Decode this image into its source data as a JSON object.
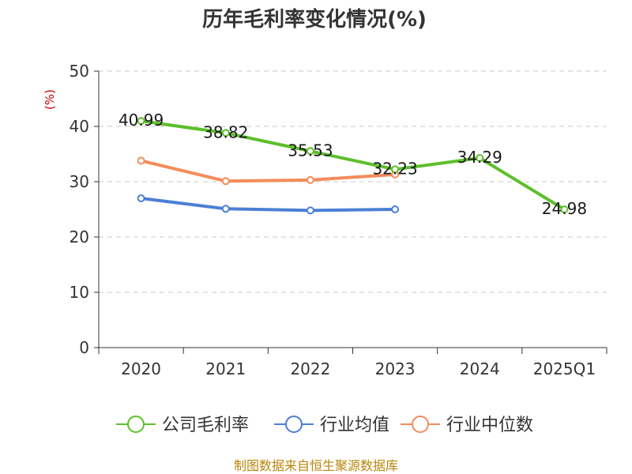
{
  "chart_data": {
    "type": "line",
    "title": "历年毛利率变化情况(%)",
    "ylabel": "(%)",
    "xlabel": "",
    "categories": [
      "2020",
      "2021",
      "2022",
      "2023",
      "2024",
      "2025Q1"
    ],
    "ylim": [
      0,
      50
    ],
    "yticks": [
      0,
      10,
      20,
      30,
      40,
      50
    ],
    "grid": true,
    "legend_position": "bottom",
    "series": [
      {
        "name": "公司毛利率",
        "color": "#5cbf2a",
        "values": [
          40.99,
          38.82,
          35.53,
          32.23,
          34.29,
          24.98
        ],
        "labels": [
          "40.99",
          "38.82",
          "35.53",
          "32.23",
          "34.29",
          "24.98"
        ],
        "show_labels": true
      },
      {
        "name": "行业均值",
        "color": "#4a7fd4",
        "values": [
          27.0,
          25.1,
          24.8,
          25.0,
          null,
          null
        ],
        "show_labels": false
      },
      {
        "name": "行业中位数",
        "color": "#f48c5a",
        "values": [
          33.8,
          30.1,
          30.3,
          31.3,
          null,
          null
        ],
        "show_labels": false
      }
    ]
  },
  "source_text": "制图数据来自恒生聚源数据库"
}
